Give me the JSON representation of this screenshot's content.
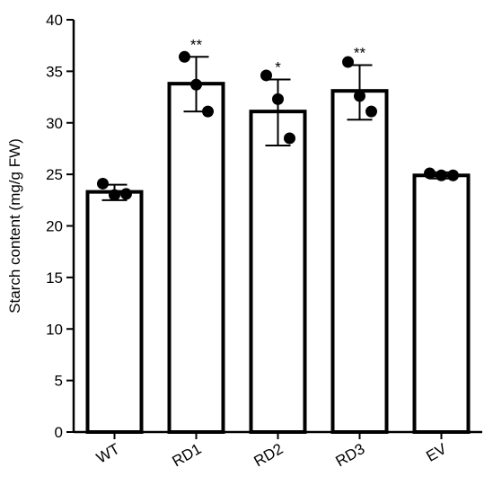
{
  "chart_data": {
    "type": "bar",
    "title": "",
    "xlabel": "",
    "ylabel": "Starch content (mg/g FW)",
    "ylim": [
      0,
      40
    ],
    "yticks": [
      0,
      5,
      10,
      15,
      20,
      25,
      30,
      35,
      40
    ],
    "ytick_labels": [
      "0",
      "5",
      "10",
      "15",
      "20",
      "25",
      "30",
      "35",
      "40"
    ],
    "categories": [
      "WT",
      "RD1",
      "RD2",
      "RD3",
      "EV"
    ],
    "values": [
      23.3,
      33.8,
      31.1,
      33.1,
      24.9
    ],
    "error_low": [
      22.5,
      31.1,
      27.8,
      30.3,
      24.6
    ],
    "error_high": [
      24.0,
      36.4,
      34.2,
      35.6,
      25.2
    ],
    "points": [
      [
        24.1,
        23.0,
        23.1
      ],
      [
        36.4,
        33.7,
        31.1
      ],
      [
        34.6,
        32.3,
        28.5
      ],
      [
        35.9,
        32.6,
        31.1
      ],
      [
        25.1,
        24.9,
        24.9
      ]
    ],
    "significance": [
      "",
      "**",
      "*",
      "**",
      ""
    ],
    "bar_fill": "#ffffff",
    "bar_stroke": "#000000",
    "point_color": "#000000",
    "grid": false,
    "legend": "none"
  }
}
